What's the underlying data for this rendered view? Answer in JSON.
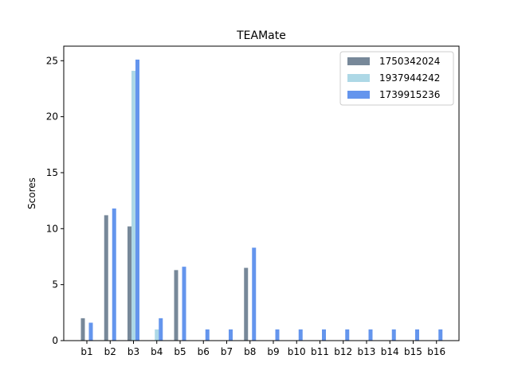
{
  "chart_data": {
    "type": "bar",
    "title": "TEAMate",
    "xlabel": "",
    "ylabel": "Scores",
    "ylim": [
      0,
      26.3
    ],
    "yticks": [
      0,
      5,
      10,
      15,
      20,
      25
    ],
    "categories": [
      "b1",
      "b2",
      "b3",
      "b4",
      "b5",
      "b6",
      "b7",
      "b8",
      "b9",
      "b10",
      "b11",
      "b12",
      "b13",
      "b14",
      "b15",
      "b16"
    ],
    "legend_position": "top-right",
    "grid": false,
    "series": [
      {
        "name": "1750342024",
        "color": "#778899",
        "values": [
          2.0,
          11.2,
          10.2,
          0,
          6.3,
          0,
          0,
          6.5,
          0,
          0,
          0,
          0,
          0,
          0,
          0,
          0
        ]
      },
      {
        "name": "1937944242",
        "color": "#add8e6",
        "values": [
          0,
          0,
          24.1,
          1.0,
          0,
          0,
          0,
          0,
          0,
          0,
          0,
          0,
          0,
          0,
          0,
          0
        ]
      },
      {
        "name": "1739915236",
        "color": "#6495ed",
        "values": [
          1.6,
          11.8,
          25.1,
          2.0,
          6.6,
          1.0,
          1.0,
          8.3,
          1.0,
          1.0,
          1.0,
          1.0,
          1.0,
          1.0,
          1.0,
          1.0
        ]
      }
    ]
  }
}
